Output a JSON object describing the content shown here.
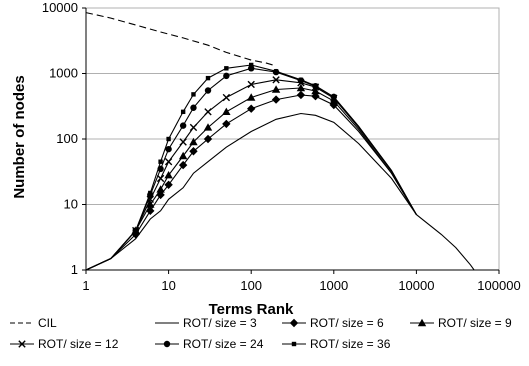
{
  "chart_data": {
    "type": "line",
    "xlabel": "Terms Rank",
    "ylabel": "Number of nodes",
    "xscale": "log",
    "yscale": "log",
    "xlim": [
      1,
      100000
    ],
    "ylim": [
      1,
      10000
    ],
    "xticks": [
      "1",
      "10",
      "100",
      "1000",
      "10000",
      "100000"
    ],
    "yticks": [
      "1",
      "10",
      "100",
      "1000",
      "10000"
    ],
    "grid": "horizontal",
    "legend_position": "bottom",
    "series": [
      {
        "name": "CIL",
        "marker": "none",
        "dash": "dashed",
        "x": [
          1,
          2,
          4,
          8,
          15,
          30,
          50,
          100,
          150,
          200
        ],
        "y": [
          8500,
          7000,
          5500,
          4300,
          3500,
          2700,
          2100,
          1600,
          1450,
          1300
        ]
      },
      {
        "name": "ROT/ size = 3",
        "marker": "none",
        "dash": "solid",
        "x": [
          1,
          2,
          4,
          6,
          8,
          10,
          15,
          20,
          30,
          50,
          100,
          200,
          400,
          600,
          1000,
          2000,
          5000,
          10000,
          20000,
          30000,
          45000,
          50000,
          70000
        ],
        "y": [
          1,
          1.5,
          3,
          6,
          8,
          12,
          18,
          30,
          45,
          75,
          130,
          200,
          245,
          230,
          180,
          85,
          25,
          7,
          3.5,
          2.2,
          1.2,
          1,
          1
        ]
      },
      {
        "name": "ROT/ size = 6",
        "marker": "diamond",
        "dash": "solid",
        "x": [
          1,
          2,
          4,
          6,
          8,
          10,
          15,
          20,
          30,
          50,
          100,
          200,
          400,
          600,
          1000,
          2000,
          5000,
          10000
        ],
        "y": [
          1,
          1.5,
          3.5,
          8,
          14,
          20,
          40,
          65,
          100,
          170,
          290,
          400,
          470,
          450,
          330,
          130,
          30,
          7
        ]
      },
      {
        "name": "ROT/ size = 9",
        "marker": "triangle",
        "dash": "solid",
        "x": [
          1,
          2,
          4,
          6,
          8,
          10,
          15,
          20,
          30,
          50,
          100,
          200,
          400,
          600,
          1000,
          2000,
          5000,
          10000
        ],
        "y": [
          1,
          1.5,
          4,
          10,
          17,
          28,
          55,
          90,
          150,
          260,
          430,
          570,
          600,
          540,
          380,
          140,
          30,
          7
        ]
      },
      {
        "name": "ROT/ size = 12",
        "marker": "x",
        "dash": "solid",
        "x": [
          1,
          2,
          4,
          6,
          8,
          10,
          15,
          20,
          30,
          50,
          100,
          200,
          400,
          600,
          1000,
          2000,
          5000,
          10000
        ],
        "y": [
          1,
          1.5,
          4,
          12,
          25,
          45,
          90,
          150,
          260,
          430,
          680,
          800,
          720,
          620,
          420,
          150,
          32,
          7
        ]
      },
      {
        "name": "ROT/ size = 24",
        "marker": "circle",
        "dash": "solid",
        "x": [
          1,
          2,
          4,
          6,
          8,
          10,
          15,
          20,
          30,
          50,
          100,
          200,
          400,
          600,
          1000,
          2000,
          5000,
          10000
        ],
        "y": [
          1,
          1.5,
          4,
          14,
          35,
          70,
          160,
          300,
          550,
          920,
          1200,
          1050,
          780,
          640,
          440,
          155,
          33,
          7
        ]
      },
      {
        "name": "ROT/ size = 36",
        "marker": "square",
        "dash": "solid",
        "x": [
          1,
          2,
          4,
          6,
          8,
          10,
          15,
          20,
          30,
          50,
          100,
          200,
          400,
          600,
          1000,
          2000,
          5000,
          10000
        ],
        "y": [
          1,
          1.5,
          4,
          15,
          45,
          100,
          260,
          480,
          850,
          1200,
          1350,
          1080,
          800,
          650,
          440,
          155,
          33,
          7
        ]
      }
    ]
  }
}
